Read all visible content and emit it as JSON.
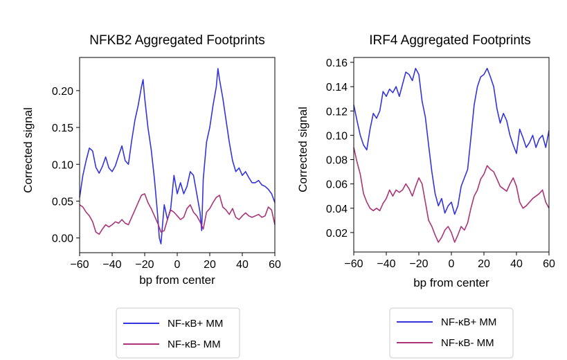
{
  "chart_data": [
    {
      "type": "line",
      "title": "NFKB2 Aggregated Footprints",
      "xlabel": "bp from center",
      "ylabel": "Corrected signal",
      "xlim": [
        -60,
        60
      ],
      "ylim": [
        -0.02,
        0.245
      ],
      "xticks": [
        -60,
        -40,
        -20,
        0,
        20,
        40,
        60
      ],
      "xtick_labels": [
        "−60",
        "−40",
        "−20",
        "0",
        "20",
        "40",
        "60"
      ],
      "yticks": [
        0.0,
        0.05,
        0.1,
        0.15,
        0.2
      ],
      "ytick_labels": [
        "0.00",
        "0.05",
        "0.10",
        "0.15",
        "0.20"
      ],
      "grid": false,
      "legend_position": "below",
      "series": [
        {
          "name": "NF-κB+ MM",
          "color": "#3333dd",
          "x": [
            -60,
            -58,
            -56,
            -54,
            -52,
            -50,
            -48,
            -46,
            -44,
            -42,
            -40,
            -38,
            -36,
            -34,
            -32,
            -30,
            -28,
            -26,
            -24,
            -22,
            -21,
            -20,
            -18,
            -16,
            -14,
            -12,
            -11,
            -10,
            -8,
            -6,
            -4,
            -2,
            0,
            2,
            4,
            6,
            8,
            10,
            12,
            14,
            15,
            16,
            18,
            20,
            22,
            24,
            25,
            26,
            28,
            30,
            32,
            34,
            36,
            38,
            40,
            42,
            44,
            46,
            48,
            50,
            52,
            54,
            56,
            58,
            60
          ],
          "y": [
            0.055,
            0.085,
            0.105,
            0.122,
            0.118,
            0.096,
            0.088,
            0.097,
            0.11,
            0.095,
            0.09,
            0.098,
            0.112,
            0.125,
            0.105,
            0.1,
            0.132,
            0.16,
            0.18,
            0.205,
            0.215,
            0.19,
            0.15,
            0.12,
            0.08,
            0.03,
            0.0,
            -0.008,
            0.045,
            0.025,
            0.04,
            0.085,
            0.06,
            0.075,
            0.06,
            0.07,
            0.09,
            0.085,
            0.06,
            0.035,
            0.01,
            0.08,
            0.13,
            0.15,
            0.18,
            0.205,
            0.23,
            0.215,
            0.19,
            0.16,
            0.13,
            0.105,
            0.09,
            0.095,
            0.085,
            0.09,
            0.082,
            0.075,
            0.075,
            0.078,
            0.072,
            0.07,
            0.066,
            0.06,
            0.048
          ]
        },
        {
          "name": "NF-κB- MM",
          "color": "#aa3377",
          "x": [
            -60,
            -58,
            -56,
            -54,
            -52,
            -50,
            -48,
            -46,
            -44,
            -42,
            -40,
            -38,
            -36,
            -34,
            -32,
            -30,
            -28,
            -26,
            -24,
            -22,
            -20,
            -18,
            -16,
            -14,
            -12,
            -10,
            -8,
            -6,
            -4,
            -2,
            0,
            2,
            4,
            6,
            8,
            10,
            12,
            14,
            16,
            18,
            20,
            22,
            24,
            26,
            28,
            30,
            32,
            34,
            36,
            38,
            40,
            42,
            44,
            46,
            48,
            50,
            52,
            54,
            56,
            58,
            60
          ],
          "y": [
            0.045,
            0.042,
            0.035,
            0.03,
            0.022,
            0.008,
            0.005,
            0.012,
            0.018,
            0.015,
            0.018,
            0.022,
            0.02,
            0.025,
            0.02,
            0.018,
            0.028,
            0.038,
            0.048,
            0.058,
            0.06,
            0.048,
            0.04,
            0.03,
            0.02,
            0.008,
            0.01,
            0.025,
            0.038,
            0.035,
            0.03,
            0.025,
            0.028,
            0.04,
            0.045,
            0.035,
            0.03,
            0.022,
            0.012,
            0.035,
            0.04,
            0.048,
            0.055,
            0.058,
            0.042,
            0.038,
            0.032,
            0.04,
            0.028,
            0.025,
            0.03,
            0.034,
            0.03,
            0.028,
            0.03,
            0.032,
            0.028,
            0.03,
            0.042,
            0.038,
            0.018
          ]
        }
      ]
    },
    {
      "type": "line",
      "title": "IRF4 Aggregated Footprints",
      "xlabel": "bp from center",
      "ylabel": "Corrected signal",
      "xlim": [
        -60,
        60
      ],
      "ylim": [
        0.004,
        0.164
      ],
      "xticks": [
        -60,
        -40,
        -20,
        0,
        20,
        40,
        60
      ],
      "xtick_labels": [
        "−60",
        "−40",
        "−20",
        "0",
        "20",
        "40",
        "60"
      ],
      "yticks": [
        0.02,
        0.04,
        0.06,
        0.08,
        0.1,
        0.12,
        0.14,
        0.16
      ],
      "ytick_labels": [
        "0.02",
        "0.04",
        "0.06",
        "0.08",
        "0.10",
        "0.12",
        "0.14",
        "0.16"
      ],
      "grid": false,
      "legend_position": "below",
      "series": [
        {
          "name": "NF-κB+ MM",
          "color": "#3333dd",
          "x": [
            -60,
            -58,
            -56,
            -54,
            -52,
            -50,
            -48,
            -46,
            -44,
            -42,
            -40,
            -38,
            -36,
            -34,
            -32,
            -30,
            -28,
            -26,
            -24,
            -22,
            -20,
            -18,
            -16,
            -14,
            -12,
            -10,
            -8,
            -6,
            -4,
            -2,
            0,
            2,
            4,
            6,
            8,
            10,
            12,
            14,
            16,
            18,
            20,
            22,
            24,
            26,
            28,
            30,
            32,
            34,
            36,
            38,
            40,
            42,
            44,
            46,
            48,
            50,
            52,
            54,
            56,
            58,
            60
          ],
          "y": [
            0.125,
            0.112,
            0.1,
            0.092,
            0.088,
            0.105,
            0.118,
            0.114,
            0.12,
            0.136,
            0.132,
            0.138,
            0.135,
            0.14,
            0.132,
            0.142,
            0.152,
            0.15,
            0.145,
            0.155,
            0.15,
            0.128,
            0.115,
            0.092,
            0.07,
            0.052,
            0.042,
            0.048,
            0.036,
            0.042,
            0.045,
            0.035,
            0.042,
            0.058,
            0.065,
            0.072,
            0.098,
            0.125,
            0.14,
            0.148,
            0.15,
            0.155,
            0.148,
            0.14,
            0.122,
            0.11,
            0.118,
            0.112,
            0.1,
            0.092,
            0.085,
            0.105,
            0.098,
            0.09,
            0.094,
            0.1,
            0.09,
            0.097,
            0.1,
            0.09,
            0.104
          ]
        },
        {
          "name": "NF-κB- MM",
          "color": "#aa3377",
          "x": [
            -60,
            -58,
            -56,
            -54,
            -52,
            -50,
            -48,
            -46,
            -44,
            -42,
            -40,
            -38,
            -36,
            -34,
            -32,
            -30,
            -28,
            -26,
            -24,
            -22,
            -20,
            -18,
            -16,
            -14,
            -12,
            -10,
            -8,
            -6,
            -4,
            -2,
            0,
            2,
            4,
            6,
            8,
            10,
            12,
            14,
            16,
            18,
            20,
            22,
            24,
            26,
            28,
            30,
            32,
            34,
            36,
            38,
            40,
            42,
            44,
            46,
            48,
            50,
            52,
            54,
            56,
            58,
            60
          ],
          "y": [
            0.09,
            0.078,
            0.068,
            0.052,
            0.045,
            0.04,
            0.038,
            0.04,
            0.038,
            0.044,
            0.048,
            0.055,
            0.05,
            0.055,
            0.053,
            0.055,
            0.06,
            0.056,
            0.05,
            0.058,
            0.065,
            0.06,
            0.045,
            0.03,
            0.025,
            0.018,
            0.012,
            0.016,
            0.022,
            0.025,
            0.02,
            0.012,
            0.018,
            0.025,
            0.022,
            0.028,
            0.04,
            0.05,
            0.055,
            0.064,
            0.068,
            0.075,
            0.072,
            0.07,
            0.064,
            0.058,
            0.056,
            0.054,
            0.06,
            0.065,
            0.058,
            0.045,
            0.04,
            0.042,
            0.045,
            0.048,
            0.05,
            0.052,
            0.055,
            0.045,
            0.04
          ]
        }
      ]
    }
  ]
}
